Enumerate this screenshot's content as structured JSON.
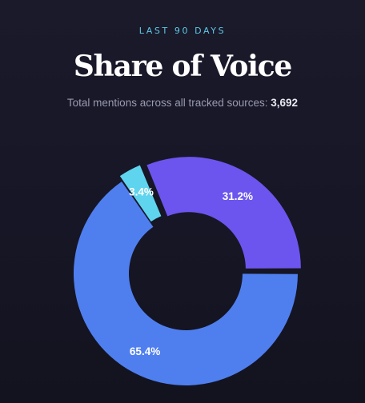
{
  "header": {
    "eyebrow": "LAST 90 DAYS",
    "title": "Share of Voice",
    "subtitle_prefix": "Total mentions across all tracked sources:",
    "subtitle_total": "3,692"
  },
  "chart_data": {
    "type": "pie",
    "style": "donut",
    "title": "Share of Voice",
    "total": 3692,
    "slices": [
      {
        "value": 65.4,
        "label": "65.4%",
        "color": "#4f7fef",
        "explode": 0
      },
      {
        "value": 3.4,
        "label": "3.4%",
        "color": "#5fd4ee",
        "explode": 1
      },
      {
        "value": 31.2,
        "label": "31.2%",
        "color": "#6b55ee",
        "explode": 1
      }
    ],
    "background": "#161626"
  }
}
